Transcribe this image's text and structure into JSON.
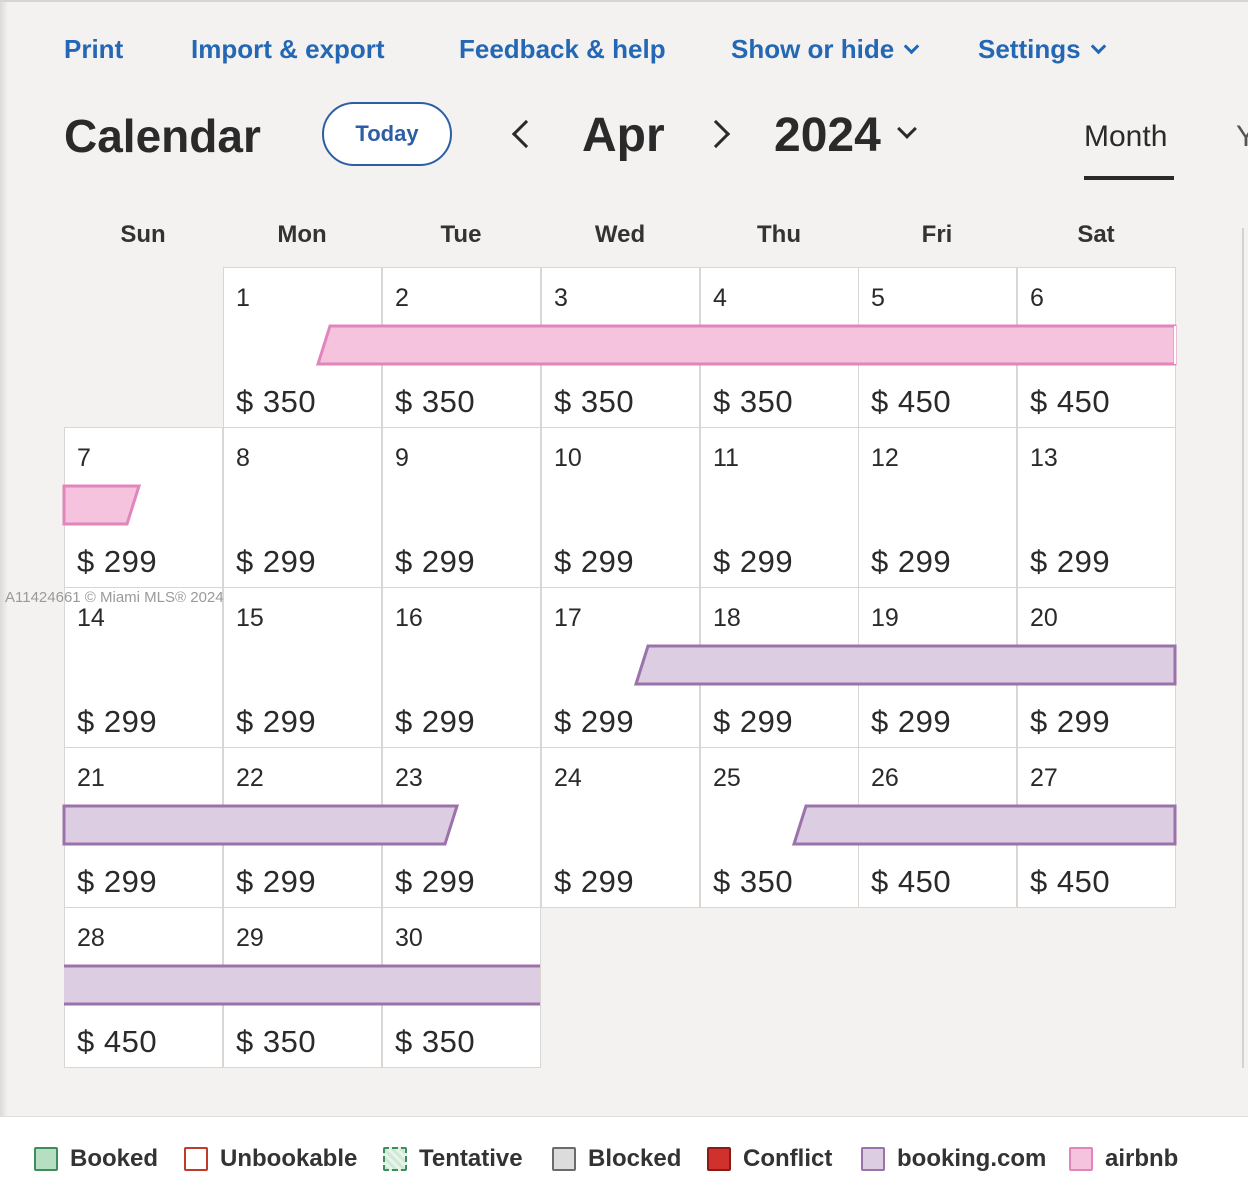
{
  "nav": {
    "print": "Print",
    "import_export": "Import & export",
    "feedback": "Feedback & help",
    "show_hide": "Show or hide",
    "settings": "Settings"
  },
  "header": {
    "title": "Calendar",
    "today": "Today",
    "month": "Apr",
    "year": "2024",
    "view_month": "Month",
    "view_year": "Y"
  },
  "weekdays": [
    "Sun",
    "Mon",
    "Tue",
    "Wed",
    "Thu",
    "Fri",
    "Sat"
  ],
  "days": [
    {
      "day": "1",
      "price": "$ 350"
    },
    {
      "day": "2",
      "price": "$ 350"
    },
    {
      "day": "3",
      "price": "$ 350"
    },
    {
      "day": "4",
      "price": "$ 350"
    },
    {
      "day": "5",
      "price": "$ 450"
    },
    {
      "day": "6",
      "price": "$ 450"
    },
    {
      "day": "7",
      "price": "$ 299"
    },
    {
      "day": "8",
      "price": "$ 299"
    },
    {
      "day": "9",
      "price": "$ 299"
    },
    {
      "day": "10",
      "price": "$ 299"
    },
    {
      "day": "11",
      "price": "$ 299"
    },
    {
      "day": "12",
      "price": "$ 299"
    },
    {
      "day": "13",
      "price": "$ 299"
    },
    {
      "day": "14",
      "price": "$ 299"
    },
    {
      "day": "15",
      "price": "$ 299"
    },
    {
      "day": "16",
      "price": "$ 299"
    },
    {
      "day": "17",
      "price": "$ 299"
    },
    {
      "day": "18",
      "price": "$ 299"
    },
    {
      "day": "19",
      "price": "$ 299"
    },
    {
      "day": "20",
      "price": "$ 299"
    },
    {
      "day": "21",
      "price": "$ 299"
    },
    {
      "day": "22",
      "price": "$ 299"
    },
    {
      "day": "23",
      "price": "$ 299"
    },
    {
      "day": "24",
      "price": "$ 299"
    },
    {
      "day": "25",
      "price": "$ 350"
    },
    {
      "day": "26",
      "price": "$ 450"
    },
    {
      "day": "27",
      "price": "$ 450"
    },
    {
      "day": "28",
      "price": "$ 450"
    },
    {
      "day": "29",
      "price": "$ 350"
    },
    {
      "day": "30",
      "price": "$ 350"
    }
  ],
  "watermark": "A11424661 © Miami MLS® 2024",
  "legend": [
    {
      "label": "Booked",
      "color": "#b5dfc0",
      "border": "#3f8d5c"
    },
    {
      "label": "Unbookable",
      "color": "#ffffff",
      "border": "#c0392b"
    },
    {
      "label": "Tentative",
      "color": "#cfe9d6",
      "border": "#3f8d5c"
    },
    {
      "label": "Blocked",
      "color": "#dcdcdc",
      "border": "#6b6b6b"
    },
    {
      "label": "Conflict",
      "color": "#d0312d",
      "border": "#8a1b17"
    },
    {
      "label": "booking.com",
      "color": "#ddcde3",
      "border": "#9b72aa"
    },
    {
      "label": "airbnb",
      "color": "#f6c3df",
      "border": "#e285bb"
    }
  ]
}
